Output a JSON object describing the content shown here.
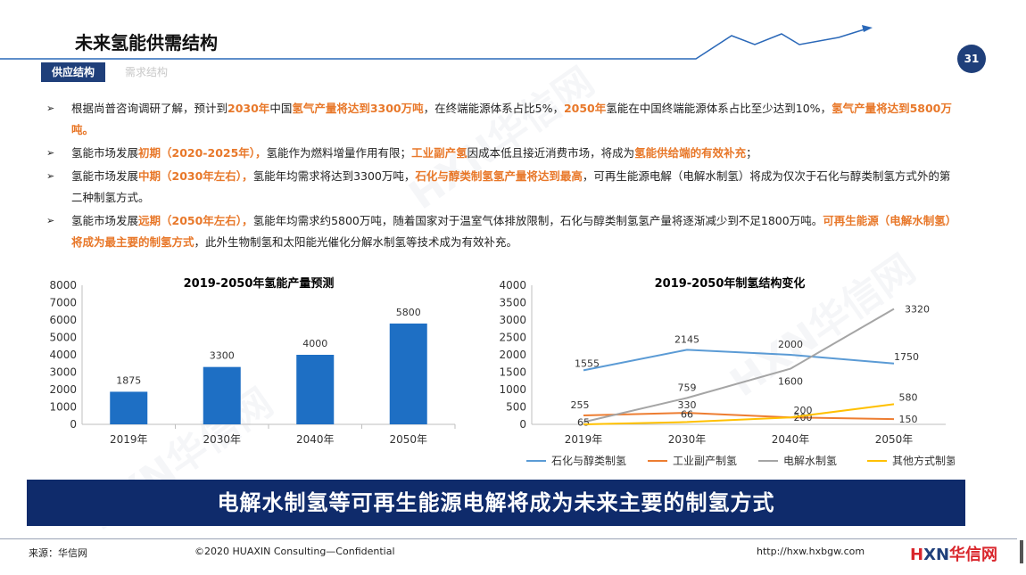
{
  "header": {
    "title": "未来氢能供需结构",
    "page_number": "31",
    "tabs": [
      {
        "label": "供应结构",
        "active": true
      },
      {
        "label": "需求结构",
        "active": false
      }
    ]
  },
  "bullets": [
    {
      "parts": [
        {
          "t": "根据尚普咨询调研了解，预计到",
          "hl": false
        },
        {
          "t": "2030年",
          "hl": true
        },
        {
          "t": "中国",
          "hl": false
        },
        {
          "t": "氢气产量将达到3300万吨",
          "hl": true
        },
        {
          "t": "，在终端能源体系占比5%，",
          "hl": false
        },
        {
          "t": "2050年",
          "hl": true
        },
        {
          "t": "氢能在中国终端能源体系占比至少达到10%，",
          "hl": false
        },
        {
          "t": "氢气产量将达到5800万吨。",
          "hl": true
        }
      ]
    },
    {
      "parts": [
        {
          "t": "氢能市场发展",
          "hl": false
        },
        {
          "t": "初期（2020-2025年），",
          "hl": true
        },
        {
          "t": "氢能作为燃料增量作用有限；",
          "hl": false
        },
        {
          "t": "工业副产氢",
          "hl": true
        },
        {
          "t": "因成本低且接近消费市场，将成为",
          "hl": false
        },
        {
          "t": "氢能供给端的有效补充",
          "hl": true
        },
        {
          "t": "；",
          "hl": false
        }
      ]
    },
    {
      "parts": [
        {
          "t": "氢能市场发展",
          "hl": false
        },
        {
          "t": "中期（2030年左右），",
          "hl": true
        },
        {
          "t": "氢能年均需求将达到3300万吨，",
          "hl": false
        },
        {
          "t": "石化与醇类制氢氢产量将达到最高",
          "hl": true
        },
        {
          "t": "，可再生能源电解（电解水制氢）将成为仅次于石化与醇类制氢方式外的第二种制氢方式。",
          "hl": false
        }
      ]
    },
    {
      "parts": [
        {
          "t": "氢能市场发展",
          "hl": false
        },
        {
          "t": "远期（2050年左右），",
          "hl": true
        },
        {
          "t": "氢能年均需求约5800万吨，随着国家对于温室气体排放限制，石化与醇类制氢氢产量将逐渐减少到不足1800万吨。",
          "hl": false
        },
        {
          "t": "可再生能源（电解水制氢）将成为最主要的制氢方式",
          "hl": true
        },
        {
          "t": "，此外生物制氢和太阳能光催化分解水制氢等技术成为有效补充。",
          "hl": false
        }
      ]
    }
  ],
  "chart_data": [
    {
      "type": "bar",
      "title": "2019-2050年氢能产量预测",
      "categories": [
        "2019年",
        "2030年",
        "2040年",
        "2050年"
      ],
      "values": [
        1875,
        3300,
        4000,
        5800
      ],
      "data_labels": [
        "1875",
        "3300",
        "4000",
        "5800"
      ],
      "ylim": [
        0,
        8000
      ],
      "yticks": [
        "0",
        "1000",
        "2000",
        "3000",
        "4000",
        "5000",
        "6000",
        "7000",
        "8000"
      ],
      "grid": false,
      "color": "#1e6fc4"
    },
    {
      "type": "line",
      "title": "2019-2050年制氢结构变化",
      "categories": [
        "2019年",
        "2030年",
        "2040年",
        "2050年"
      ],
      "ylim": [
        0,
        4000
      ],
      "yticks": [
        "0",
        "500",
        "1000",
        "1500",
        "2000",
        "2500",
        "3000",
        "3500",
        "4000"
      ],
      "legend": "bottom",
      "grid": false,
      "series": [
        {
          "name": "石化与醇类制氢",
          "values": [
            1555,
            2145,
            2000,
            1750
          ],
          "labels": [
            "1555",
            "2145",
            "2000",
            "1750"
          ],
          "color": "#5b9bd5"
        },
        {
          "name": "工业副产制氢",
          "values": [
            255,
            330,
            200,
            150
          ],
          "labels": [
            "255",
            "330",
            "200",
            "150"
          ],
          "color": "#ed7d31"
        },
        {
          "name": "电解水制氢",
          "values": [
            65,
            759,
            1600,
            3320
          ],
          "labels": [
            "65",
            "759",
            "1600",
            "3320"
          ],
          "color": "#a5a5a5"
        },
        {
          "name": "其他方式制氢",
          "values": [
            0,
            66,
            200,
            580
          ],
          "labels": [
            "",
            "66",
            "200",
            "580"
          ],
          "color": "#ffc000"
        }
      ]
    }
  ],
  "banner": {
    "text": "电解水制氢等可再生能源电解将成为未来主要的制氢方式"
  },
  "footer": {
    "source": "来源：华信网",
    "copyright": "©2020 HUAXIN Consulting—Confidential",
    "url": "http://hxw.hxbgw.com",
    "logo_h": "H",
    "logo_xn": "XN",
    "logo_cn": "华信网"
  },
  "watermark": {
    "text": "HXN华信网"
  }
}
